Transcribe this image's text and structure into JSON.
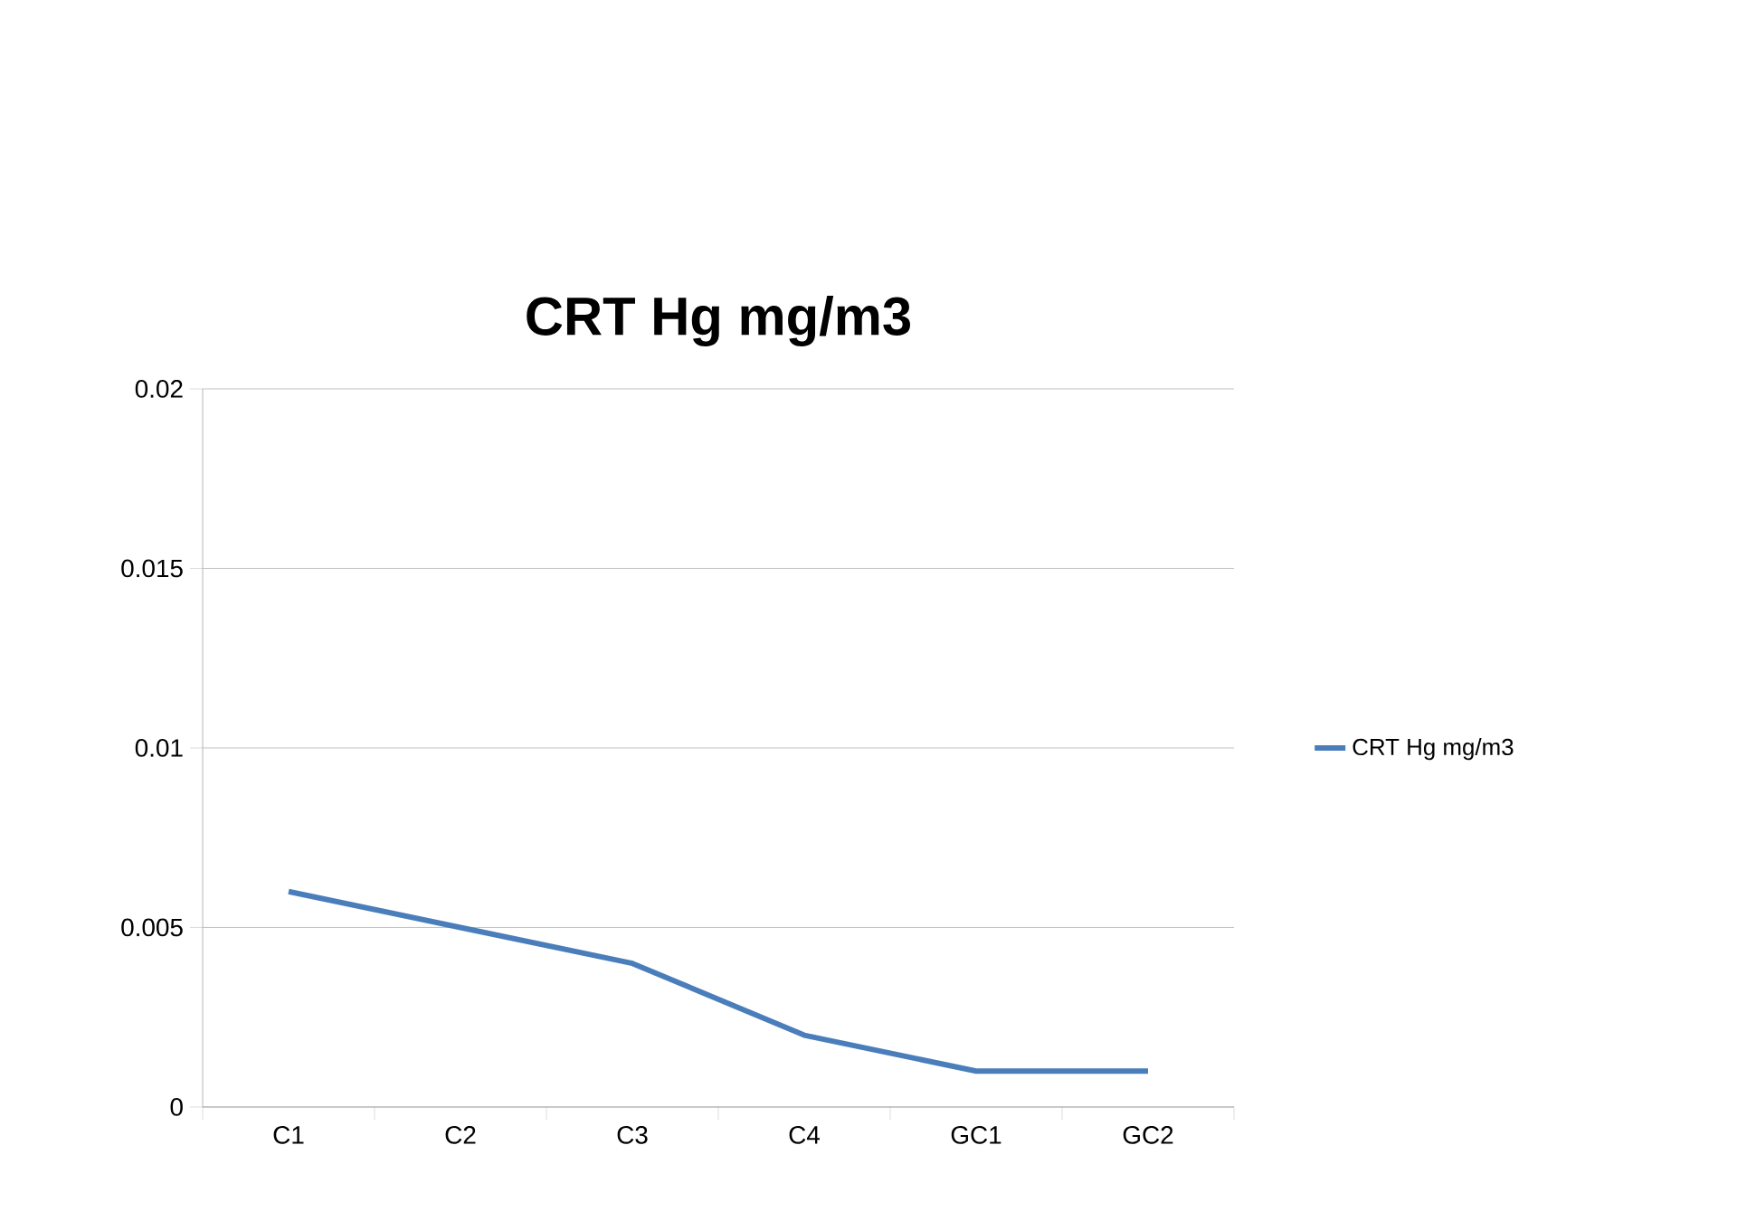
{
  "chart_data": {
    "type": "line",
    "title": "CRT Hg mg/m3",
    "categories": [
      "C1",
      "C2",
      "C3",
      "C4",
      "GC1",
      "GC2"
    ],
    "series": [
      {
        "name": "CRT Hg mg/m3",
        "color": "#4a7ebb",
        "values": [
          0.006,
          0.005,
          0.004,
          0.002,
          0.001,
          0.001
        ]
      }
    ],
    "ylim": [
      0,
      0.02
    ],
    "yticks": [
      0,
      0.005,
      0.01,
      0.015,
      0.02
    ],
    "grid": "y",
    "legend": "right",
    "marker": "none",
    "line_style": "solid"
  }
}
